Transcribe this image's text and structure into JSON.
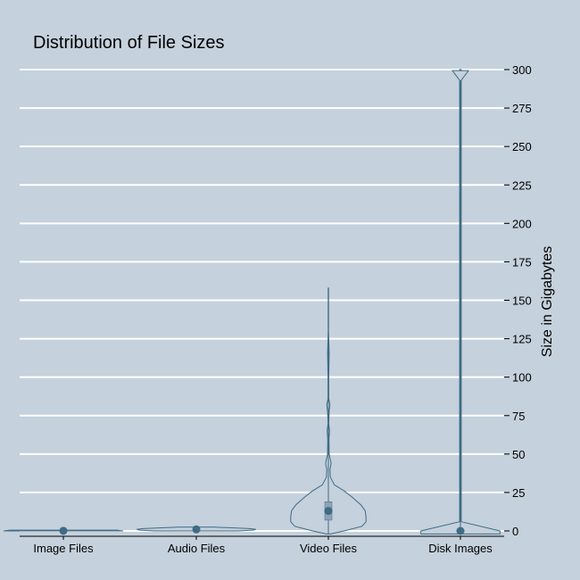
{
  "colors": {
    "background": "#c5d1dc",
    "gridline": "#ffffff",
    "violin_fill": "#c5d1dc",
    "violin_stroke": "#3e6b85",
    "box_fill": "#8fa3b3",
    "median_dot": "#3e6b85",
    "axis": "#000000"
  },
  "chart_data": {
    "type": "violin",
    "title": "Distribution of File Sizes",
    "xlabel": "",
    "ylabel": "Size in Gigabytes",
    "ylim": [
      0,
      300
    ],
    "yticks": [
      0,
      25,
      50,
      75,
      100,
      125,
      150,
      175,
      200,
      225,
      250,
      275,
      300
    ],
    "ytick_labels": [
      "0",
      "25",
      "50",
      "75",
      "100",
      "125",
      "150",
      "175",
      "200",
      "225",
      "250",
      "275",
      "300"
    ],
    "y_axis_position": "right",
    "grid": "horizontal",
    "legend": "none",
    "categories": [
      "Image Files",
      "Audio Files",
      "Video Files",
      "Disk Images"
    ],
    "series": [
      {
        "category": "Image Files",
        "min": 0,
        "q1": 0,
        "median": 0.1,
        "q3": 0.2,
        "max": 0.5,
        "density_width": 0.45,
        "density": [
          [
            0,
            1.0
          ],
          [
            0.5,
            0.9
          ]
        ]
      },
      {
        "category": "Audio Files",
        "min": 0,
        "q1": 0.5,
        "median": 1,
        "q3": 1.5,
        "max": 2.5,
        "density_width": 0.45,
        "density": [
          [
            0,
            0.7
          ],
          [
            0.5,
            0.95
          ],
          [
            1,
            1.0
          ],
          [
            1.5,
            0.9
          ],
          [
            2.5,
            0.3
          ]
        ]
      },
      {
        "category": "Video Files",
        "min": -2,
        "q1": 7,
        "median": 13,
        "q3": 19,
        "max": 158,
        "density_width": 0.3,
        "density": [
          [
            -2,
            0.05
          ],
          [
            0,
            0.4
          ],
          [
            3,
            0.85
          ],
          [
            6,
            0.95
          ],
          [
            9,
            0.95
          ],
          [
            13,
            0.93
          ],
          [
            17,
            0.82
          ],
          [
            22,
            0.6
          ],
          [
            26,
            0.4
          ],
          [
            30,
            0.15
          ],
          [
            35,
            0.05
          ],
          [
            40,
            0.04
          ],
          [
            44,
            0.07
          ],
          [
            50,
            0.02
          ],
          [
            60,
            0.015
          ],
          [
            65,
            0.03
          ],
          [
            70,
            0.01
          ],
          [
            78,
            0.02
          ],
          [
            82,
            0.04
          ],
          [
            86,
            0.01
          ],
          [
            100,
            0.01
          ],
          [
            115,
            0.02
          ],
          [
            130,
            0.005
          ],
          [
            158,
            0.005
          ]
        ]
      },
      {
        "category": "Disk Images",
        "min": -2,
        "q1": 0,
        "median": 0,
        "q3": 0,
        "max": 300,
        "density_width": 0.3,
        "density": [
          [
            -2,
            1.0
          ],
          [
            0,
            1.0
          ],
          [
            6,
            0.02
          ],
          [
            300,
            0.02
          ]
        ],
        "outlier_markers": [
          297
        ]
      }
    ]
  }
}
